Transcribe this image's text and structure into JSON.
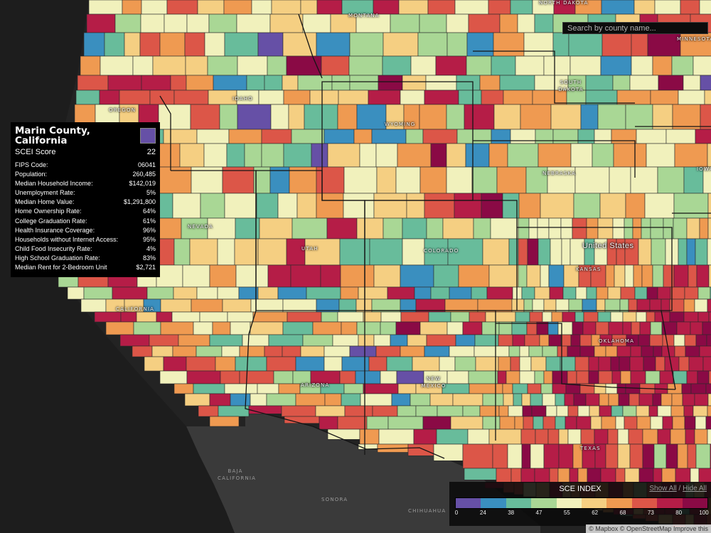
{
  "search": {
    "placeholder": "Search by county name..."
  },
  "info": {
    "county": "Marin County, California",
    "score_label": "SCEI Score",
    "score": "22",
    "swatch_color": "#6650a6",
    "rows": [
      {
        "label": "FIPS Code:",
        "value": "06041"
      },
      {
        "label": "Population:",
        "value": "260,485"
      },
      {
        "label": "Median Household Income:",
        "value": "$142,019"
      },
      {
        "label": "Unemployment Rate:",
        "value": "5%"
      },
      {
        "label": "Median Home Value:",
        "value": "$1,291,800"
      },
      {
        "label": "Home Ownership Rate:",
        "value": "64%"
      },
      {
        "label": "College Graduation Rate:",
        "value": "61%"
      },
      {
        "label": "Health Insurance Coverage:",
        "value": "96%"
      },
      {
        "label": "Households without Internet Access:",
        "value": "95%"
      },
      {
        "label": "Child Food Insecurity Rate:",
        "value": "4%"
      },
      {
        "label": "High School Graduation Rate:",
        "value": "83%"
      },
      {
        "label": "Median Rent for 2-Bedroom Unit",
        "value": "$2,721"
      }
    ]
  },
  "legend": {
    "title": "SCE INDEX",
    "show_all": "Show All",
    "separator": " / ",
    "hide_all": "Hide All",
    "ticks": [
      "0",
      "24",
      "38",
      "47",
      "55",
      "62",
      "68",
      "73",
      "80",
      "100"
    ],
    "colors": [
      "#6650a6",
      "#3a8fbf",
      "#68bc9b",
      "#a9d795",
      "#f1f1bc",
      "#f5cf82",
      "#ef9a51",
      "#dc5648",
      "#b51d47",
      "#8a0a45"
    ]
  },
  "labels": {
    "montana": "MONTANA",
    "north_dakota": "NORTH DAKOTA",
    "minnesota": "MINNESOTA",
    "south_dakota": "SOUTH DAKOTA",
    "oregon": "OREGON",
    "idaho": "IDAHO",
    "wyoming": "WYOMING",
    "iowa": "IOWA",
    "nebraska": "NEBRASKA",
    "nevada": "NEVADA",
    "utah": "UTAH",
    "colorado": "COLORADO",
    "united_states": "United States",
    "kansas": "KANSAS",
    "california": "CALIFORNIA",
    "oklahoma": "OKLAHOMA",
    "arizona": "ARIZONA",
    "new_mexico": "NEW MEXICO",
    "texas": "TEXAS",
    "baja_california": "BAJA CALIFORNIA",
    "sonora": "SONORA",
    "chihuahua": "CHIHUAHUA"
  },
  "attribution": "© Mapbox © OpenStreetMap  Improve this"
}
